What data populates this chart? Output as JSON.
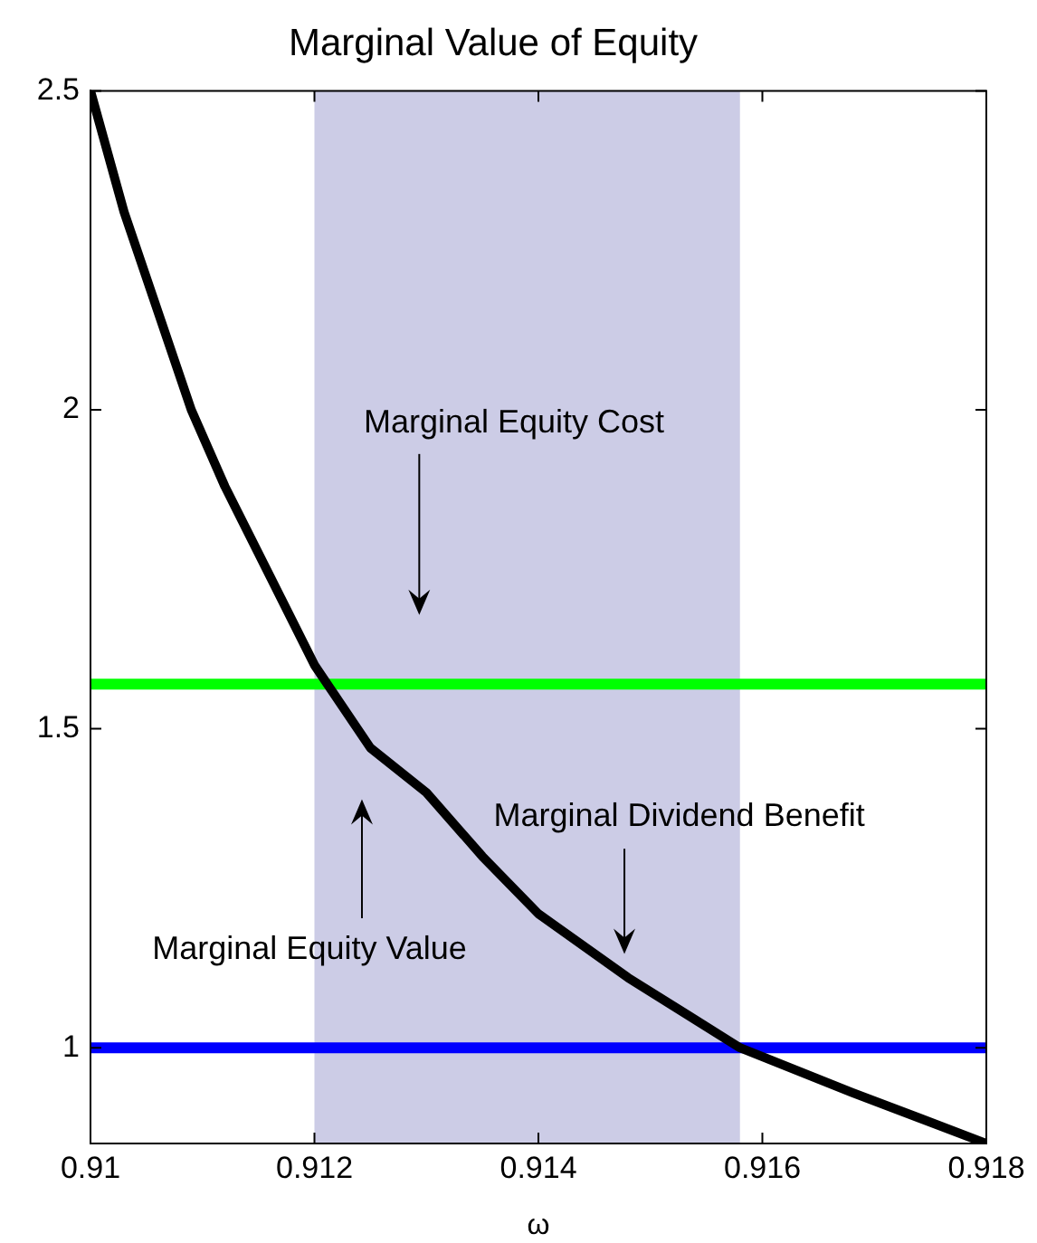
{
  "chart_data": {
    "type": "line",
    "title": "Marginal Value of Equity",
    "xlabel": "ω",
    "x": [
      0.91,
      0.9103,
      0.9109,
      0.9112,
      0.9116,
      0.912,
      0.9125,
      0.913,
      0.9135,
      0.914,
      0.9148,
      0.9158,
      0.9168,
      0.9174,
      0.918
    ],
    "series": [
      {
        "color": "#000000",
        "values": [
          2.5,
          2.31,
          2.0,
          1.88,
          1.74,
          1.6,
          1.47,
          1.4,
          1.3,
          1.21,
          1.11,
          1.0,
          0.93,
          0.89,
          0.85
        ]
      }
    ],
    "ref_lines": [
      {
        "axis": "y",
        "value": 1.57,
        "color": "#00ff00"
      },
      {
        "axis": "y",
        "value": 1.0,
        "color": "#0000ff"
      }
    ],
    "bands": [
      {
        "axis": "x",
        "from": 0.912,
        "to": 0.9158,
        "color": "#ccccE6"
      }
    ],
    "annotations": [
      "Marginal Equity Cost",
      "Marginal Dividend Benefit",
      "Marginal Equity Value"
    ],
    "xlim": [
      0.91,
      0.918
    ],
    "xticks": [
      0.91,
      0.912,
      0.914,
      0.916,
      0.918
    ],
    "ylim": [
      0.85,
      2.5
    ],
    "yticks": [
      1,
      1.5,
      2,
      2.5
    ],
    "grid": false,
    "legend": false
  }
}
